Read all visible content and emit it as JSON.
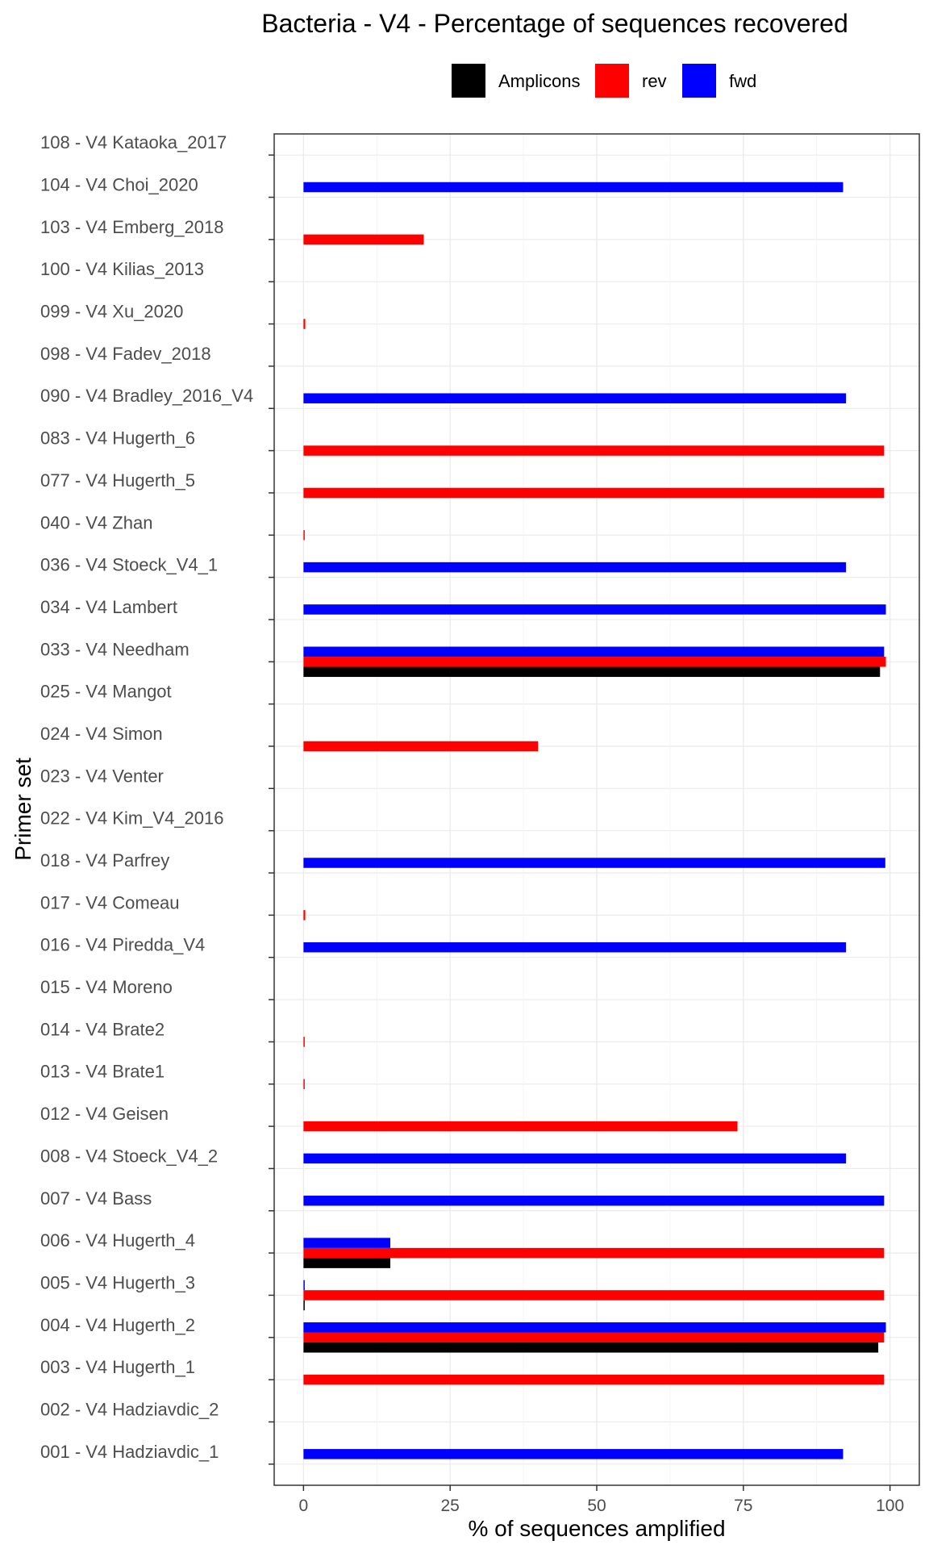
{
  "chart_data": {
    "type": "bar",
    "orientation": "horizontal",
    "title": "Bacteria - V4 - Percentage of sequences recovered",
    "xlabel": "% of sequences amplified",
    "ylabel": "Primer set",
    "xlim": [
      -5,
      105
    ],
    "xticks": [
      0,
      25,
      50,
      75,
      100
    ],
    "grid": true,
    "legend_position": "top",
    "legend": [
      {
        "name": "Amplicons",
        "color": "#000000"
      },
      {
        "name": "rev",
        "color": "#ff0000"
      },
      {
        "name": "fwd",
        "color": "#0000ff"
      }
    ],
    "categories": [
      "108 - V4 Kataoka_2017",
      "104 - V4 Choi_2020",
      "103 - V4 Emberg_2018",
      "100 - V4 Kilias_2013",
      "099 - V4 Xu_2020",
      "098 - V4 Fadev_2018",
      "090 - V4 Bradley_2016_V4",
      "083 - V4 Hugerth_6",
      "077 - V4 Hugerth_5",
      "040 - V4 Zhan",
      "036 - V4 Stoeck_V4_1",
      "034 - V4 Lambert",
      "033 - V4 Needham",
      "025 - V4 Mangot",
      "024 - V4 Simon",
      "023 - V4 Venter",
      "022 - V4 Kim_V4_2016",
      "018 - V4 Parfrey",
      "017 - V4 Comeau",
      "016 - V4 Piredda_V4",
      "015 - V4 Moreno",
      "014 - V4 Brate2",
      "013 - V4 Brate1",
      "012 - V4 Geisen",
      "008 - V4 Stoeck_V4_2",
      "007 - V4 Bass",
      "006 - V4 Hugerth_4",
      "005 - V4 Hugerth_3",
      "004 - V4 Hugerth_2",
      "003 - V4 Hugerth_1",
      "002 - V4 Hadziavdic_2",
      "001 - V4 Hadziavdic_1"
    ],
    "series": [
      {
        "name": "Amplicons",
        "color": "#000000",
        "values": [
          0,
          0,
          0,
          0,
          0,
          0,
          0,
          0,
          0,
          0,
          0,
          0,
          98.3,
          0,
          0,
          0,
          0,
          0,
          0,
          0,
          0,
          0,
          0,
          0,
          0,
          0,
          14.8,
          0.2,
          98.0,
          0,
          0,
          0
        ]
      },
      {
        "name": "rev",
        "color": "#ff0000",
        "values": [
          0,
          0,
          20.5,
          0,
          0.3,
          0,
          0,
          99.0,
          99.0,
          0.2,
          0,
          0,
          99.3,
          0,
          40.0,
          0,
          0,
          0,
          0.3,
          0,
          0,
          0.2,
          0.2,
          74.0,
          0,
          0,
          99.0,
          99.0,
          99.0,
          99.0,
          0,
          0
        ]
      },
      {
        "name": "fwd",
        "color": "#0000ff",
        "values": [
          0,
          92.0,
          0,
          0,
          0,
          0,
          92.5,
          0,
          0,
          0,
          92.5,
          99.3,
          99.0,
          0,
          0,
          0,
          0,
          99.2,
          0,
          92.5,
          0,
          0,
          0,
          0,
          92.5,
          99.0,
          14.8,
          0.2,
          99.3,
          0,
          0,
          92.0
        ]
      }
    ]
  }
}
